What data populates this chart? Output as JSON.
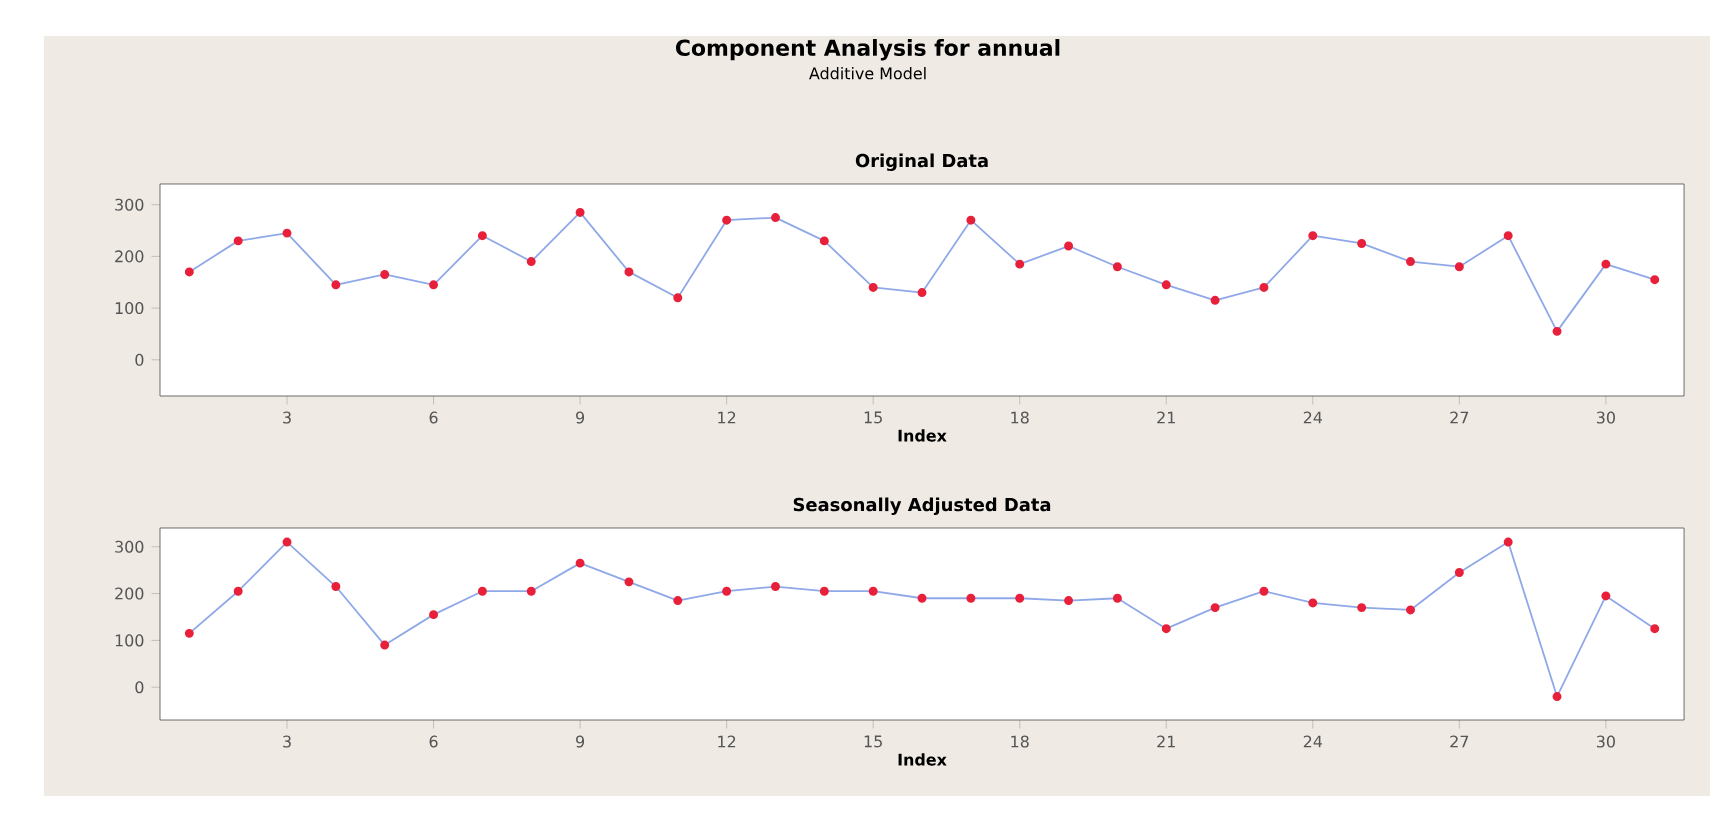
{
  "chart_data": [
    {
      "type": "line",
      "title": "Original Data",
      "xlabel": "Index",
      "annotations": [
        "Component Analysis for annual",
        "Additive Model"
      ],
      "x": [
        1,
        2,
        3,
        4,
        5,
        6,
        7,
        8,
        9,
        10,
        11,
        12,
        13,
        14,
        15,
        16,
        17,
        18,
        19,
        20,
        21,
        22,
        23,
        24,
        25,
        26,
        27,
        28,
        29,
        30,
        31
      ],
      "series": [
        {
          "color": "#e8203a",
          "values": [
            170,
            230,
            245,
            145,
            165,
            145,
            240,
            190,
            285,
            170,
            120,
            270,
            275,
            230,
            140,
            130,
            270,
            185,
            220,
            180,
            145,
            115,
            140,
            240,
            225,
            190,
            180,
            240,
            55,
            185,
            155
          ]
        }
      ],
      "xlim": [
        0.4,
        31.6
      ],
      "ylim": [
        -70,
        340
      ],
      "xticks": [
        3,
        6,
        9,
        12,
        15,
        18,
        21,
        24,
        27,
        30
      ],
      "yticks": [
        0,
        100,
        200,
        300
      ],
      "marker": "circle",
      "line_style": "solid"
    },
    {
      "type": "line",
      "title": "Seasonally Adjusted Data",
      "xlabel": "Index",
      "x": [
        1,
        2,
        3,
        4,
        5,
        6,
        7,
        8,
        9,
        10,
        11,
        12,
        13,
        14,
        15,
        16,
        17,
        18,
        19,
        20,
        21,
        22,
        23,
        24,
        25,
        26,
        27,
        28,
        29,
        30,
        31
      ],
      "series": [
        {
          "color": "#e8203a",
          "values": [
            115,
            205,
            310,
            215,
            90,
            155,
            205,
            205,
            265,
            225,
            185,
            205,
            215,
            205,
            205,
            190,
            190,
            190,
            185,
            190,
            125,
            170,
            205,
            180,
            170,
            165,
            245,
            310,
            -20,
            195,
            125
          ]
        }
      ],
      "xlim": [
        0.4,
        31.6
      ],
      "ylim": [
        -70,
        340
      ],
      "xticks": [
        3,
        6,
        9,
        12,
        15,
        18,
        21,
        24,
        27,
        30
      ],
      "yticks": [
        0,
        100,
        200,
        300
      ],
      "marker": "circle",
      "line_style": "solid"
    }
  ]
}
